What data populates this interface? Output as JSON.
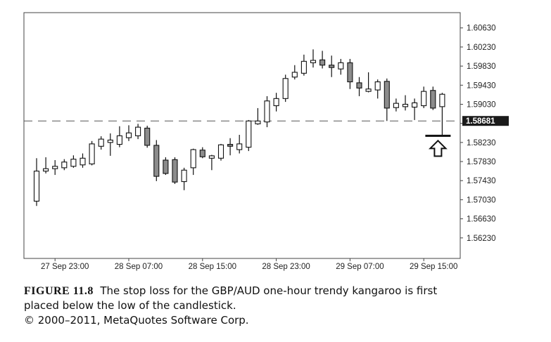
{
  "chart_data": {
    "type": "candlestick",
    "title": "",
    "xlabel": "",
    "ylabel": "",
    "ylim": [
      1.558,
      1.6095
    ],
    "y_ticks": [
      "1.60630",
      "1.60230",
      "1.59830",
      "1.59430",
      "1.59030",
      "1.58630",
      "1.58230",
      "1.57830",
      "1.57430",
      "1.57030",
      "1.56630",
      "1.56230"
    ],
    "x_ticks": [
      "27 Sep 23:00",
      "28 Sep 07:00",
      "28 Sep 15:00",
      "28 Sep 23:00",
      "29 Sep 07:00",
      "29 Sep 15:00"
    ],
    "x_tick_bar_index": [
      2,
      10,
      18,
      26,
      34,
      42
    ],
    "marker_value": "1.58681",
    "stop_level": 1.5837,
    "grid": false,
    "bullish_color": "#ffffff",
    "bearish_color": "#8c8c8c",
    "candles": [
      {
        "o": 1.57,
        "h": 1.579,
        "l": 1.569,
        "c": 1.5763
      },
      {
        "o": 1.5763,
        "h": 1.5792,
        "l": 1.5758,
        "c": 1.5768
      },
      {
        "o": 1.5768,
        "h": 1.5786,
        "l": 1.5755,
        "c": 1.5773
      },
      {
        "o": 1.577,
        "h": 1.5788,
        "l": 1.5765,
        "c": 1.5782
      },
      {
        "o": 1.5773,
        "h": 1.5796,
        "l": 1.577,
        "c": 1.5788
      },
      {
        "o": 1.5776,
        "h": 1.58,
        "l": 1.577,
        "c": 1.579
      },
      {
        "o": 1.5778,
        "h": 1.5826,
        "l": 1.5775,
        "c": 1.582
      },
      {
        "o": 1.5815,
        "h": 1.5836,
        "l": 1.5808,
        "c": 1.583
      },
      {
        "o": 1.5823,
        "h": 1.5842,
        "l": 1.5795,
        "c": 1.5828
      },
      {
        "o": 1.5819,
        "h": 1.5857,
        "l": 1.5813,
        "c": 1.5837
      },
      {
        "o": 1.5833,
        "h": 1.5859,
        "l": 1.5826,
        "c": 1.5843
      },
      {
        "o": 1.5837,
        "h": 1.5862,
        "l": 1.583,
        "c": 1.5855
      },
      {
        "o": 1.5853,
        "h": 1.5858,
        "l": 1.5812,
        "c": 1.5817
      },
      {
        "o": 1.5817,
        "h": 1.5828,
        "l": 1.5742,
        "c": 1.5752
      },
      {
        "o": 1.5786,
        "h": 1.5792,
        "l": 1.5755,
        "c": 1.5758
      },
      {
        "o": 1.5787,
        "h": 1.5792,
        "l": 1.5736,
        "c": 1.574
      },
      {
        "o": 1.5741,
        "h": 1.577,
        "l": 1.5723,
        "c": 1.5765
      },
      {
        "o": 1.577,
        "h": 1.581,
        "l": 1.5755,
        "c": 1.5808
      },
      {
        "o": 1.5807,
        "h": 1.5813,
        "l": 1.579,
        "c": 1.5793
      },
      {
        "o": 1.579,
        "h": 1.5797,
        "l": 1.5765,
        "c": 1.5795
      },
      {
        "o": 1.579,
        "h": 1.582,
        "l": 1.5785,
        "c": 1.5818
      },
      {
        "o": 1.5819,
        "h": 1.5832,
        "l": 1.5796,
        "c": 1.5815
      },
      {
        "o": 1.5808,
        "h": 1.5839,
        "l": 1.58,
        "c": 1.582
      },
      {
        "o": 1.5813,
        "h": 1.587,
        "l": 1.5805,
        "c": 1.5868
      },
      {
        "o": 1.5862,
        "h": 1.5895,
        "l": 1.586,
        "c": 1.5868
      },
      {
        "o": 1.5866,
        "h": 1.592,
        "l": 1.5855,
        "c": 1.591
      },
      {
        "o": 1.59,
        "h": 1.5927,
        "l": 1.5888,
        "c": 1.5915
      },
      {
        "o": 1.5915,
        "h": 1.5965,
        "l": 1.5908,
        "c": 1.5957
      },
      {
        "o": 1.596,
        "h": 1.5985,
        "l": 1.5955,
        "c": 1.597
      },
      {
        "o": 1.5968,
        "h": 1.6007,
        "l": 1.5963,
        "c": 1.5993
      },
      {
        "o": 1.599,
        "h": 1.6018,
        "l": 1.598,
        "c": 1.5995
      },
      {
        "o": 1.5996,
        "h": 1.6015,
        "l": 1.5978,
        "c": 1.5985
      },
      {
        "o": 1.5985,
        "h": 1.6005,
        "l": 1.596,
        "c": 1.598
      },
      {
        "o": 1.5977,
        "h": 1.5998,
        "l": 1.5965,
        "c": 1.599
      },
      {
        "o": 1.599,
        "h": 1.5998,
        "l": 1.5935,
        "c": 1.595
      },
      {
        "o": 1.5948,
        "h": 1.596,
        "l": 1.592,
        "c": 1.5937
      },
      {
        "o": 1.593,
        "h": 1.597,
        "l": 1.5928,
        "c": 1.5935
      },
      {
        "o": 1.5933,
        "h": 1.5955,
        "l": 1.5915,
        "c": 1.595
      },
      {
        "o": 1.5951,
        "h": 1.5957,
        "l": 1.5868,
        "c": 1.5895
      },
      {
        "o": 1.5896,
        "h": 1.5915,
        "l": 1.5888,
        "c": 1.5905
      },
      {
        "o": 1.5898,
        "h": 1.5922,
        "l": 1.589,
        "c": 1.5903
      },
      {
        "o": 1.5897,
        "h": 1.5915,
        "l": 1.587,
        "c": 1.5906
      },
      {
        "o": 1.59,
        "h": 1.594,
        "l": 1.5895,
        "c": 1.593
      },
      {
        "o": 1.5932,
        "h": 1.594,
        "l": 1.5891,
        "c": 1.5895
      },
      {
        "o": 1.5898,
        "h": 1.5927,
        "l": 1.5837,
        "c": 1.5924
      }
    ]
  },
  "caption": {
    "label": "FIGURE 11.8",
    "text_line1": "The stop loss for the GBP/AUD one-hour trendy kangaroo is first",
    "text_line2": "placed below the low of the candlestick.",
    "copyright": "© 2000–2011, MetaQuotes Software Corp."
  }
}
